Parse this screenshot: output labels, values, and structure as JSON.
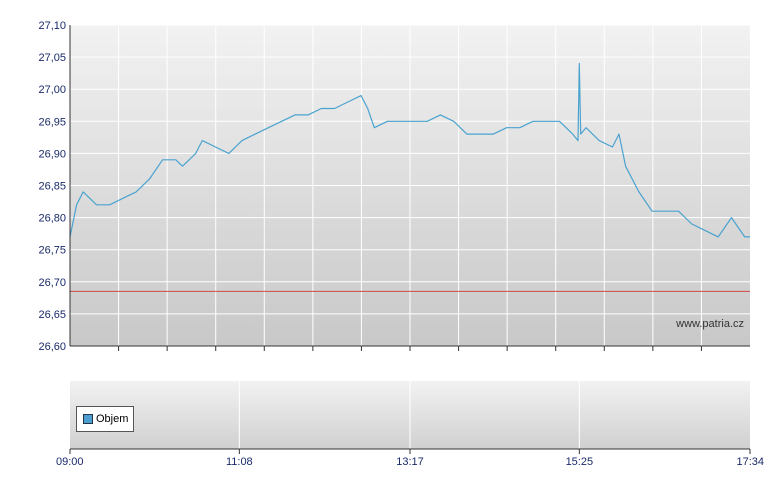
{
  "chart_data": [
    {
      "type": "line",
      "title": "",
      "xlabel": "",
      "ylabel": "",
      "ylim": [
        26.6,
        27.1
      ],
      "y_ticks": [
        "26,60",
        "26,65",
        "26,70",
        "26,75",
        "26,80",
        "26,85",
        "26,90",
        "26,95",
        "27,00",
        "27,05",
        "27,10"
      ],
      "x_range": [
        "09:00",
        "17:34"
      ],
      "reference_line": {
        "value": 26.685,
        "color": "#d04848"
      },
      "watermark": "www.patria.cz",
      "grid": true,
      "series": [
        {
          "color": "#4aa3cf",
          "x": [
            "09:00",
            "09:05",
            "09:10",
            "09:15",
            "09:20",
            "09:30",
            "09:40",
            "09:50",
            "10:00",
            "10:10",
            "10:20",
            "10:25",
            "10:30",
            "10:35",
            "10:40",
            "10:50",
            "11:00",
            "11:10",
            "11:20",
            "11:30",
            "11:40",
            "11:50",
            "12:00",
            "12:10",
            "12:20",
            "12:30",
            "12:40",
            "12:45",
            "12:50",
            "13:00",
            "13:10",
            "13:20",
            "13:30",
            "13:40",
            "13:50",
            "14:00",
            "14:10",
            "14:20",
            "14:30",
            "14:40",
            "14:50",
            "15:00",
            "15:10",
            "15:20",
            "15:24",
            "15:25",
            "15:26",
            "15:30",
            "15:40",
            "15:50",
            "15:55",
            "16:00",
            "16:10",
            "16:20",
            "16:30",
            "16:40",
            "16:50",
            "17:00",
            "17:10",
            "17:20",
            "17:30",
            "17:34"
          ],
          "values": [
            26.77,
            26.82,
            26.84,
            26.83,
            26.82,
            26.82,
            26.83,
            26.84,
            26.86,
            26.89,
            26.89,
            26.88,
            26.89,
            26.9,
            26.92,
            26.91,
            26.9,
            26.92,
            26.93,
            26.94,
            26.95,
            26.96,
            26.96,
            26.97,
            26.97,
            26.98,
            26.99,
            26.97,
            26.94,
            26.95,
            26.95,
            26.95,
            26.95,
            26.96,
            26.95,
            26.93,
            26.93,
            26.93,
            26.94,
            26.94,
            26.95,
            26.95,
            26.95,
            26.93,
            26.92,
            27.04,
            26.93,
            26.94,
            26.92,
            26.91,
            26.93,
            26.88,
            26.84,
            26.81,
            26.81,
            26.81,
            26.79,
            26.78,
            26.77,
            26.8,
            26.77,
            26.77
          ]
        }
      ]
    },
    {
      "type": "bar",
      "title": "",
      "x_ticks": [
        "09:00",
        "11:08",
        "13:17",
        "15:25",
        "17:34"
      ],
      "legend": [
        {
          "name": "Objem",
          "color": "#4a9fd0"
        }
      ],
      "legend_placement": "bottom-left",
      "series": [
        {
          "name": "Objem",
          "values": []
        }
      ]
    }
  ]
}
